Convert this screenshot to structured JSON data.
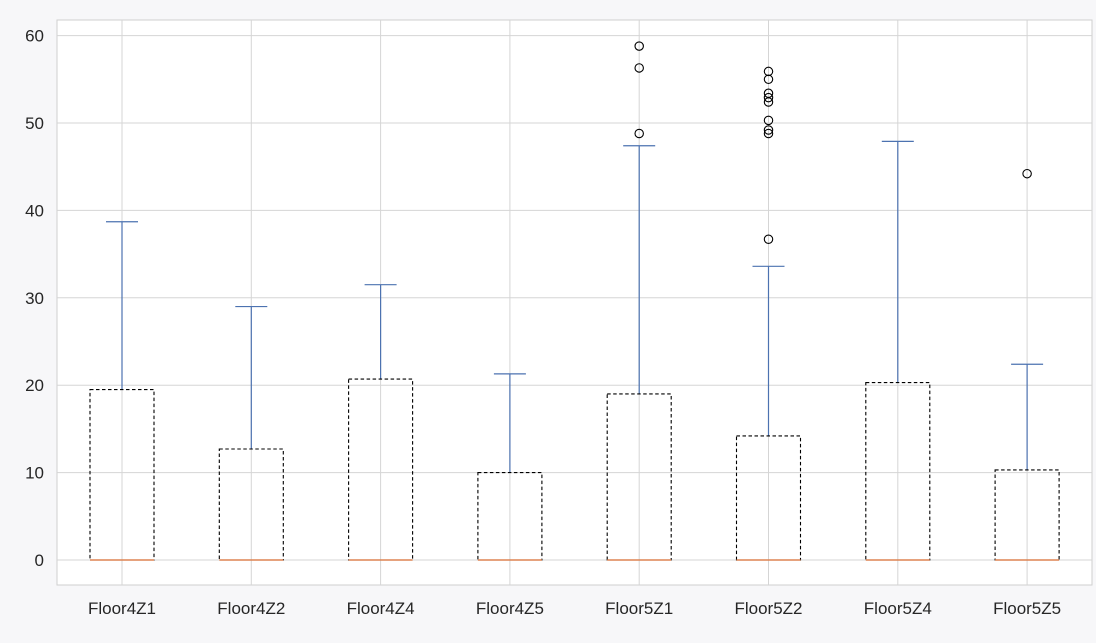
{
  "chart_data": {
    "type": "box",
    "title": "",
    "xlabel": "",
    "ylabel": "",
    "categories": [
      "Floor4Z1",
      "Floor4Z2",
      "Floor4Z4",
      "Floor4Z5",
      "Floor5Z1",
      "Floor5Z2",
      "Floor5Z4",
      "Floor5Z5"
    ],
    "ylim": [
      -3,
      62
    ],
    "yticks": [
      0,
      10,
      20,
      30,
      40,
      50,
      60
    ],
    "ytick_labels": [
      "0",
      "10",
      "20",
      "30",
      "40",
      "50",
      "60"
    ],
    "grid": true,
    "boxes": [
      {
        "q1": 0,
        "median": 0,
        "q3": 19.5,
        "whisker_low": 0,
        "whisker_high": 38.7,
        "outliers": []
      },
      {
        "q1": 0,
        "median": 0,
        "q3": 12.7,
        "whisker_low": 0,
        "whisker_high": 29.0,
        "outliers": []
      },
      {
        "q1": 0,
        "median": 0,
        "q3": 20.7,
        "whisker_low": 0,
        "whisker_high": 31.5,
        "outliers": []
      },
      {
        "q1": 0,
        "median": 0,
        "q3": 10.0,
        "whisker_low": 0,
        "whisker_high": 21.3,
        "outliers": []
      },
      {
        "q1": 0,
        "median": 0,
        "q3": 19.0,
        "whisker_low": 0,
        "whisker_high": 47.4,
        "outliers": [
          48.8,
          56.3,
          58.8
        ]
      },
      {
        "q1": 0,
        "median": 0,
        "q3": 14.2,
        "whisker_low": 0,
        "whisker_high": 33.6,
        "outliers": [
          36.7,
          48.8,
          49.2,
          50.3,
          52.4,
          52.9,
          53.4,
          55.0,
          55.9
        ]
      },
      {
        "q1": 0,
        "median": 0,
        "q3": 20.3,
        "whisker_low": 0,
        "whisker_high": 47.9,
        "outliers": []
      },
      {
        "q1": 0,
        "median": 0,
        "q3": 10.3,
        "whisker_low": 0,
        "whisker_high": 22.4,
        "outliers": [
          44.2
        ]
      }
    ],
    "colors": {
      "background": "#ffffff",
      "grid": "#d5d5d5",
      "box_edge": "#000000",
      "whisker": "#4c72b0",
      "median": "#dd8452",
      "outlier": "#000000"
    }
  }
}
